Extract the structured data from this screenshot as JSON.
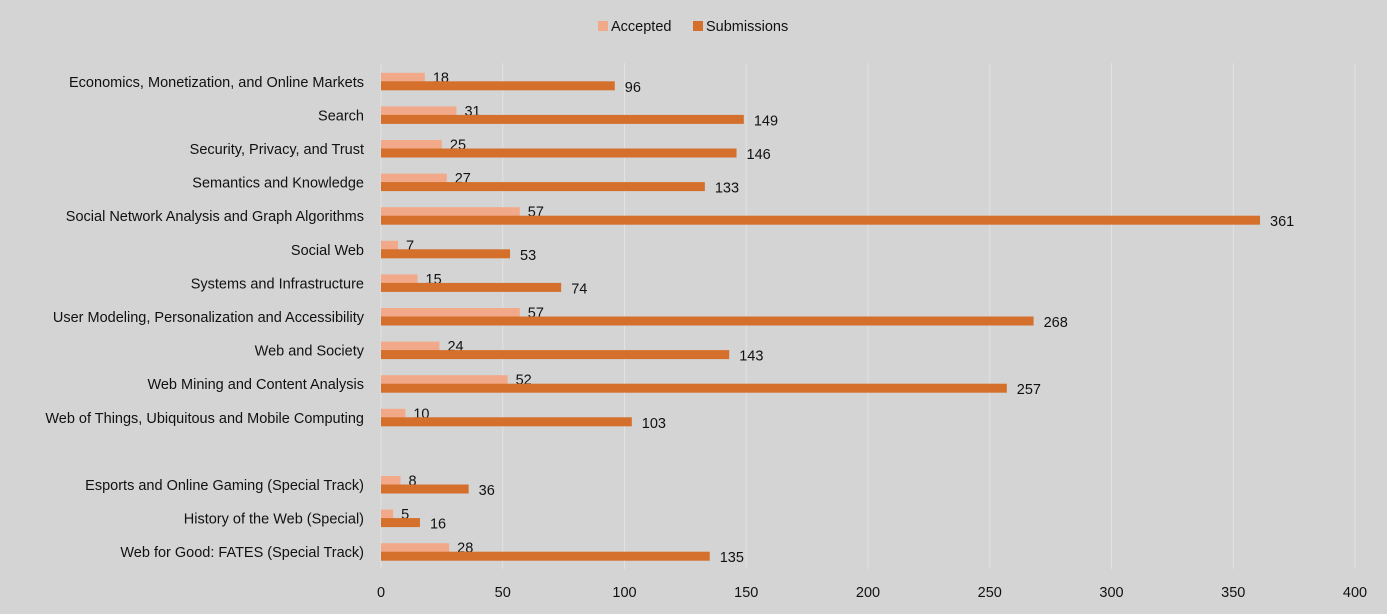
{
  "chart_data": {
    "type": "bar",
    "orientation": "horizontal",
    "categories": [
      "Economics, Monetization, and Online Markets",
      "Search",
      "Security, Privacy, and Trust",
      "Semantics and Knowledge",
      "Social Network Analysis and Graph Algorithms",
      "Social Web",
      "Systems and Infrastructure",
      "User Modeling, Personalization and Accessibility",
      "Web and Society",
      "Web Mining and Content Analysis",
      "Web of Things, Ubiquitous and Mobile Computing",
      "",
      "Esports and Online Gaming (Special Track)",
      "History of the Web (Special)",
      "Web for Good: FATES (Special Track)"
    ],
    "series": [
      {
        "name": "Accepted",
        "color": "#f2a98a",
        "values": [
          18,
          31,
          25,
          27,
          57,
          7,
          15,
          57,
          24,
          52,
          10,
          null,
          8,
          5,
          28
        ]
      },
      {
        "name": "Submissions",
        "color": "#d46f2c",
        "values": [
          96,
          149,
          146,
          133,
          361,
          53,
          74,
          268,
          143,
          257,
          103,
          null,
          36,
          16,
          135
        ]
      }
    ],
    "xlim": [
      0,
      400
    ],
    "xticks": [
      "0",
      "50",
      "100",
      "150",
      "200",
      "250",
      "300",
      "350",
      "400"
    ],
    "xtick_values": [
      0,
      50,
      100,
      150,
      200,
      250,
      300,
      350,
      400
    ],
    "grid": "vertical",
    "legend": "top-center",
    "data_labels": true,
    "background": "#d4d4d4"
  }
}
